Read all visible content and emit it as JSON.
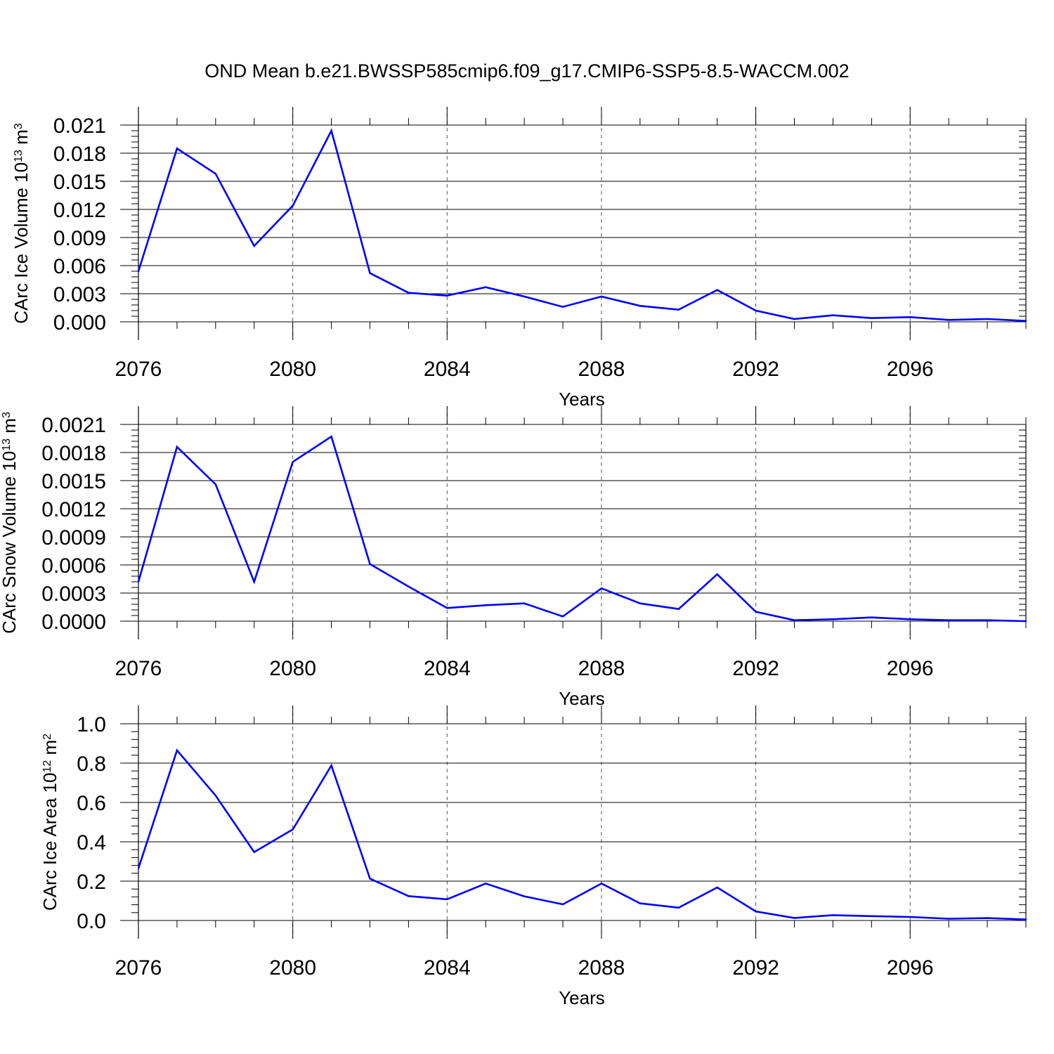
{
  "title": "OND Mean b.e21.BWSSP585cmip6.f09_g17.CMIP6-SSP5-8.5-WACCM.002",
  "colors": {
    "line": "#0000ff",
    "axis": "#000000",
    "grid": "#555555"
  },
  "chart_data": [
    {
      "type": "line",
      "ylabel": {
        "main": "CArc Ice Volume 10",
        "sup": "13",
        "unit": " m",
        "unit_sup": "3"
      },
      "xlabel": "Years",
      "xlim": [
        2076,
        2099
      ],
      "ylim": [
        0,
        0.021
      ],
      "yticks": [
        0.0,
        0.003,
        0.006,
        0.009,
        0.012,
        0.015,
        0.018,
        0.021
      ],
      "ytick_labels": [
        "0.000",
        "0.003",
        "0.006",
        "0.009",
        "0.012",
        "0.015",
        "0.018",
        "0.021"
      ],
      "xticks": [
        2076,
        2080,
        2084,
        2088,
        2092,
        2096
      ],
      "xtick_labels": [
        "2076",
        "2080",
        "2084",
        "2088",
        "2092",
        "2096"
      ],
      "x": [
        2076,
        2077,
        2078,
        2079,
        2080,
        2081,
        2082,
        2083,
        2084,
        2085,
        2086,
        2087,
        2088,
        2089,
        2090,
        2091,
        2092,
        2093,
        2094,
        2095,
        2096,
        2097,
        2098,
        2099
      ],
      "values": [
        0.0054,
        0.0185,
        0.0158,
        0.0081,
        0.0124,
        0.0204,
        0.0052,
        0.0031,
        0.0028,
        0.0037,
        0.0027,
        0.0016,
        0.0027,
        0.0017,
        0.0013,
        0.0034,
        0.0012,
        0.0003,
        0.0007,
        0.0004,
        0.0005,
        0.0002,
        0.0003,
        0.0001
      ]
    },
    {
      "type": "line",
      "ylabel": {
        "main": "CArc Snow Volume 10",
        "sup": "13",
        "unit": " m",
        "unit_sup": "3"
      },
      "xlabel": "Years",
      "xlim": [
        2076,
        2099
      ],
      "ylim": [
        0,
        0.0021
      ],
      "yticks": [
        0.0,
        0.0003,
        0.0006,
        0.0009,
        0.0012,
        0.0015,
        0.0018,
        0.0021
      ],
      "ytick_labels": [
        "0.0000",
        "0.0003",
        "0.0006",
        "0.0009",
        "0.0012",
        "0.0015",
        "0.0018",
        "0.0021"
      ],
      "xticks": [
        2076,
        2080,
        2084,
        2088,
        2092,
        2096
      ],
      "xtick_labels": [
        "2076",
        "2080",
        "2084",
        "2088",
        "2092",
        "2096"
      ],
      "x": [
        2076,
        2077,
        2078,
        2079,
        2080,
        2081,
        2082,
        2083,
        2084,
        2085,
        2086,
        2087,
        2088,
        2089,
        2090,
        2091,
        2092,
        2093,
        2094,
        2095,
        2096,
        2097,
        2098,
        2099
      ],
      "values": [
        0.00042,
        0.00186,
        0.00146,
        0.00042,
        0.0017,
        0.00197,
        0.00061,
        0.00037,
        0.00014,
        0.00017,
        0.00019,
        5e-05,
        0.00035,
        0.00019,
        0.00013,
        0.0005,
        0.0001,
        1e-05,
        2e-05,
        4e-05,
        2e-05,
        1e-05,
        1e-05,
        0.0
      ]
    },
    {
      "type": "line",
      "ylabel": {
        "main": "CArc Ice Area 10",
        "sup": "12",
        "unit": " m",
        "unit_sup": "2"
      },
      "xlabel": "Years",
      "xlim": [
        2076,
        2099
      ],
      "ylim": [
        0,
        1.0
      ],
      "yticks": [
        0.0,
        0.2,
        0.4,
        0.6,
        0.8,
        1.0
      ],
      "ytick_labels": [
        "0.0",
        "0.2",
        "0.4",
        "0.6",
        "0.8",
        "1.0"
      ],
      "xticks": [
        2076,
        2080,
        2084,
        2088,
        2092,
        2096
      ],
      "xtick_labels": [
        "2076",
        "2080",
        "2084",
        "2088",
        "2092",
        "2096"
      ],
      "x": [
        2076,
        2077,
        2078,
        2079,
        2080,
        2081,
        2082,
        2083,
        2084,
        2085,
        2086,
        2087,
        2088,
        2089,
        2090,
        2091,
        2092,
        2093,
        2094,
        2095,
        2096,
        2097,
        2098,
        2099
      ],
      "values": [
        0.265,
        0.865,
        0.635,
        0.348,
        0.463,
        0.788,
        0.213,
        0.124,
        0.108,
        0.188,
        0.123,
        0.082,
        0.188,
        0.087,
        0.065,
        0.168,
        0.046,
        0.013,
        0.027,
        0.022,
        0.018,
        0.009,
        0.012,
        0.005
      ]
    }
  ]
}
